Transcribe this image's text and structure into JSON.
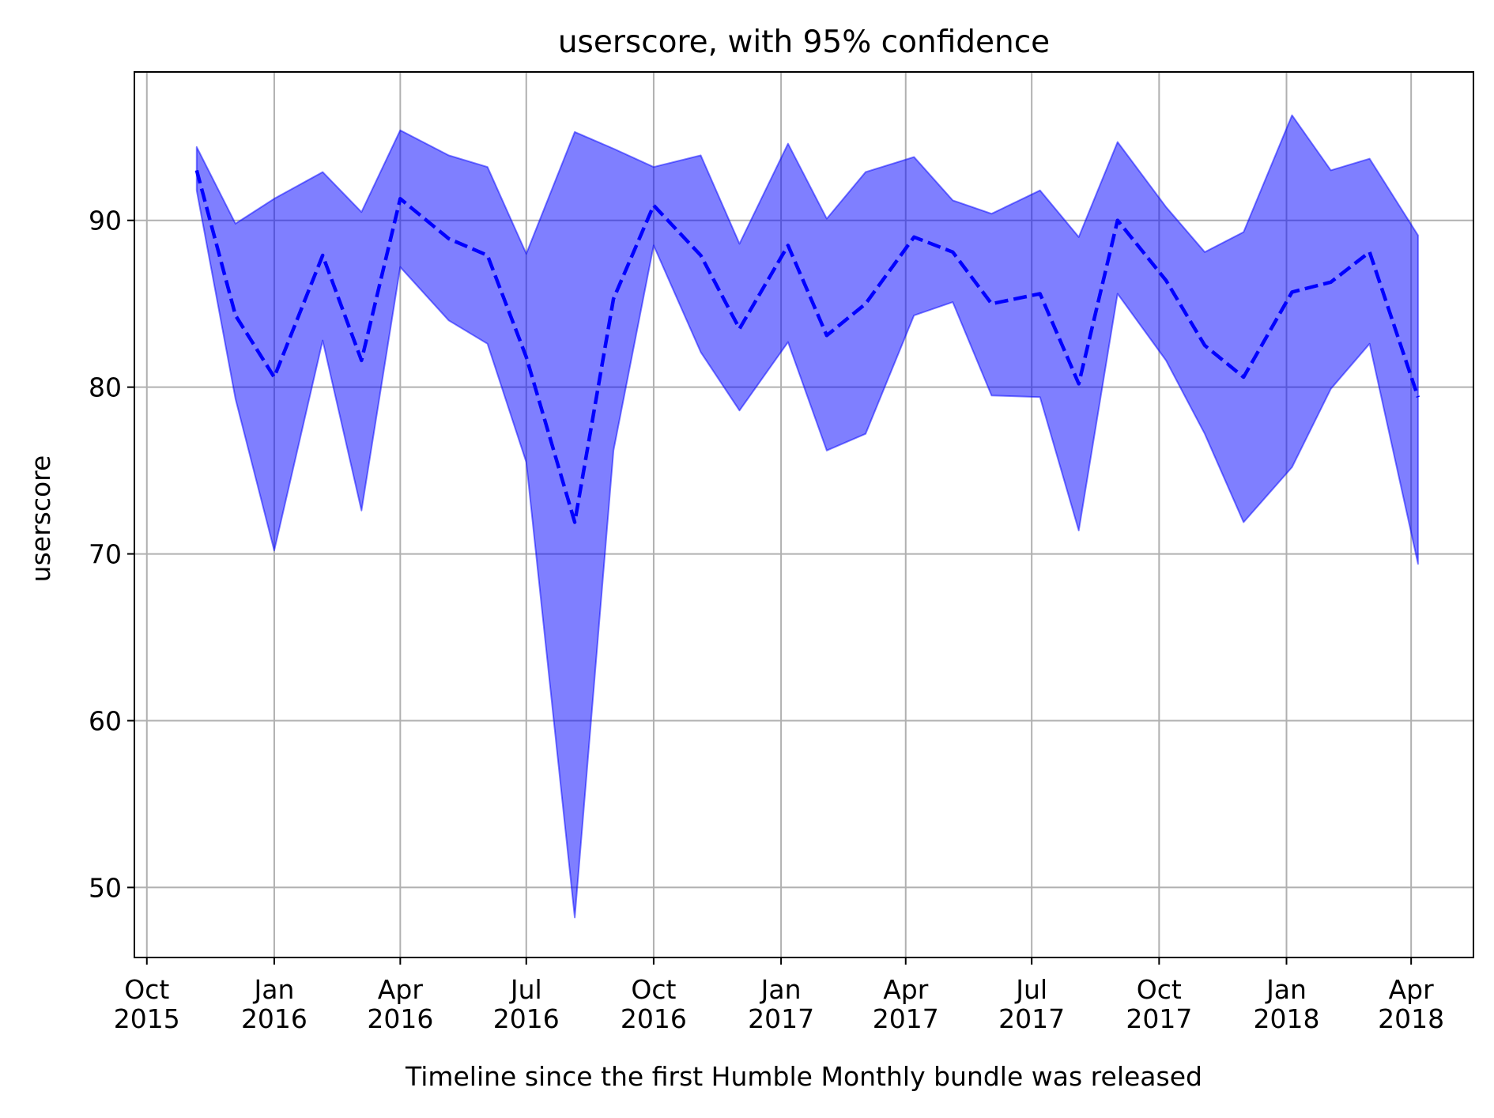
{
  "chart_data": {
    "type": "area",
    "title": "userscore, with 95% confidence",
    "xlabel": "Timeline since the first Humble Monthly bundle was released",
    "ylabel": "userscore",
    "xlim": [
      "2015-09-22",
      "2018-05-16"
    ],
    "ylim": [
      45.8,
      98.9
    ],
    "grid": true,
    "x_ticks": [
      {
        "date": "2015-10-01",
        "line1": "Oct",
        "line2": "2015"
      },
      {
        "date": "2016-01-01",
        "line1": "Jan",
        "line2": "2016"
      },
      {
        "date": "2016-04-01",
        "line1": "Apr",
        "line2": "2016"
      },
      {
        "date": "2016-07-01",
        "line1": "Jul",
        "line2": "2016"
      },
      {
        "date": "2016-10-01",
        "line1": "Oct",
        "line2": "2016"
      },
      {
        "date": "2017-01-01",
        "line1": "Jan",
        "line2": "2017"
      },
      {
        "date": "2017-04-01",
        "line1": "Apr",
        "line2": "2017"
      },
      {
        "date": "2017-07-01",
        "line1": "Jul",
        "line2": "2017"
      },
      {
        "date": "2017-10-01",
        "line1": "Oct",
        "line2": "2017"
      },
      {
        "date": "2018-01-01",
        "line1": "Jan",
        "line2": "2018"
      },
      {
        "date": "2018-04-01",
        "line1": "Apr",
        "line2": "2018"
      }
    ],
    "y_ticks": [
      50,
      60,
      70,
      80,
      90
    ],
    "x": [
      "2015-11-06",
      "2015-12-04",
      "2016-01-01",
      "2016-02-05",
      "2016-03-04",
      "2016-04-01",
      "2016-05-06",
      "2016-06-03",
      "2016-07-01",
      "2016-08-05",
      "2016-09-02",
      "2016-10-01",
      "2016-11-04",
      "2016-12-02",
      "2017-01-06",
      "2017-02-03",
      "2017-03-03",
      "2017-04-07",
      "2017-05-05",
      "2017-06-02",
      "2017-07-07",
      "2017-08-04",
      "2017-09-01",
      "2017-10-06",
      "2017-11-03",
      "2017-12-01",
      "2018-01-05",
      "2018-02-02",
      "2018-03-02",
      "2018-04-06"
    ],
    "series": [
      {
        "style": "dashed-line",
        "color": "#0000ff",
        "values": [
          93.0,
          84.3,
          80.6,
          87.9,
          81.6,
          91.3,
          88.9,
          87.9,
          81.8,
          71.9,
          85.3,
          90.9,
          87.9,
          83.5,
          88.5,
          83.1,
          85.0,
          89.0,
          88.1,
          85.0,
          85.6,
          80.2,
          90.0,
          86.4,
          82.5,
          80.6,
          85.7,
          86.3,
          88.1,
          79.4
        ]
      },
      {
        "style": "band",
        "color": "#0000ff",
        "opacity": 0.5,
        "lower": [
          91.8,
          79.3,
          70.2,
          82.8,
          72.6,
          87.2,
          84.0,
          82.6,
          75.5,
          48.2,
          76.2,
          88.5,
          82.1,
          78.6,
          82.7,
          76.2,
          77.2,
          84.3,
          85.1,
          79.5,
          79.4,
          71.4,
          85.6,
          81.6,
          77.2,
          71.9,
          75.2,
          79.9,
          82.6,
          69.4
        ],
        "upper": [
          94.4,
          89.8,
          91.3,
          92.9,
          90.5,
          95.4,
          93.9,
          93.2,
          88.0,
          95.3,
          94.3,
          93.2,
          93.9,
          88.6,
          94.6,
          90.1,
          92.9,
          93.8,
          91.2,
          90.4,
          91.8,
          89.0,
          94.7,
          90.8,
          88.1,
          89.3,
          96.3,
          93.0,
          93.7,
          89.1
        ]
      }
    ]
  }
}
